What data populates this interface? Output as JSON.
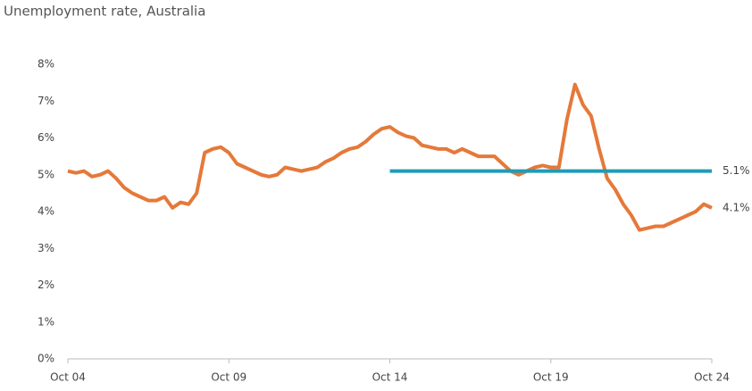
{
  "chart_data": {
    "type": "line",
    "title": "Unemployment rate, Australia",
    "xlim": [
      2004.75,
      2024.75
    ],
    "xticks": [
      {
        "value": 2004.75,
        "label": "Oct 04"
      },
      {
        "value": 2009.75,
        "label": "Oct 09"
      },
      {
        "value": 2014.75,
        "label": "Oct 14"
      },
      {
        "value": 2019.75,
        "label": "Oct 19"
      },
      {
        "value": 2024.75,
        "label": "Oct 24"
      }
    ],
    "ylim": [
      0,
      8
    ],
    "yticks": [
      {
        "value": 0,
        "label": "0%"
      },
      {
        "value": 1,
        "label": "1%"
      },
      {
        "value": 2,
        "label": "2%"
      },
      {
        "value": 3,
        "label": "3%"
      },
      {
        "value": 4,
        "label": "4%"
      },
      {
        "value": 5,
        "label": "5%"
      },
      {
        "value": 6,
        "label": "6%"
      },
      {
        "value": 7,
        "label": "7%"
      },
      {
        "value": 8,
        "label": "8%"
      }
    ],
    "series": [
      {
        "color": "#e5793a",
        "x": [
          2004.75,
          2005,
          2005.25,
          2005.5,
          2005.75,
          2006,
          2006.25,
          2006.5,
          2006.75,
          2007,
          2007.25,
          2007.5,
          2007.75,
          2008,
          2008.25,
          2008.5,
          2008.75,
          2009,
          2009.25,
          2009.5,
          2009.75,
          2010,
          2010.25,
          2010.5,
          2010.75,
          2011,
          2011.25,
          2011.5,
          2011.75,
          2012,
          2012.25,
          2012.5,
          2012.75,
          2013,
          2013.25,
          2013.5,
          2013.75,
          2014,
          2014.25,
          2014.5,
          2014.75,
          2015,
          2015.25,
          2015.5,
          2015.75,
          2016,
          2016.25,
          2016.5,
          2016.75,
          2017,
          2017.25,
          2017.5,
          2017.75,
          2018,
          2018.25,
          2018.5,
          2018.75,
          2019,
          2019.25,
          2019.5,
          2019.75,
          2020,
          2020.25,
          2020.5,
          2020.75,
          2021,
          2021.25,
          2021.5,
          2021.75,
          2022,
          2022.25,
          2022.5,
          2022.75,
          2023,
          2023.25,
          2023.5,
          2023.75,
          2024,
          2024.25,
          2024.5,
          2024.75
        ],
        "values": [
          5.1,
          5.05,
          5.1,
          4.95,
          5.0,
          5.1,
          4.9,
          4.65,
          4.5,
          4.4,
          4.3,
          4.3,
          4.4,
          4.1,
          4.25,
          4.2,
          4.5,
          5.6,
          5.7,
          5.75,
          5.6,
          5.3,
          5.2,
          5.1,
          5.0,
          4.95,
          5.0,
          5.2,
          5.15,
          5.1,
          5.15,
          5.2,
          5.35,
          5.45,
          5.6,
          5.7,
          5.75,
          5.9,
          6.1,
          6.25,
          6.3,
          6.15,
          6.05,
          6.0,
          5.8,
          5.75,
          5.7,
          5.7,
          5.6,
          5.7,
          5.6,
          5.5,
          5.5,
          5.5,
          5.3,
          5.1,
          5.0,
          5.1,
          5.2,
          5.25,
          5.2,
          5.2,
          6.5,
          7.45,
          6.9,
          6.6,
          5.7,
          4.9,
          4.6,
          4.2,
          3.9,
          3.5,
          3.55,
          3.6,
          3.6,
          3.7,
          3.8,
          3.9,
          4.0,
          4.2,
          4.1
        ],
        "end_label": "4.1%"
      },
      {
        "color": "#1f9bb8",
        "x": [
          2014.75,
          2024.75
        ],
        "values": [
          5.1,
          5.1
        ],
        "end_label": "5.1%"
      }
    ]
  }
}
